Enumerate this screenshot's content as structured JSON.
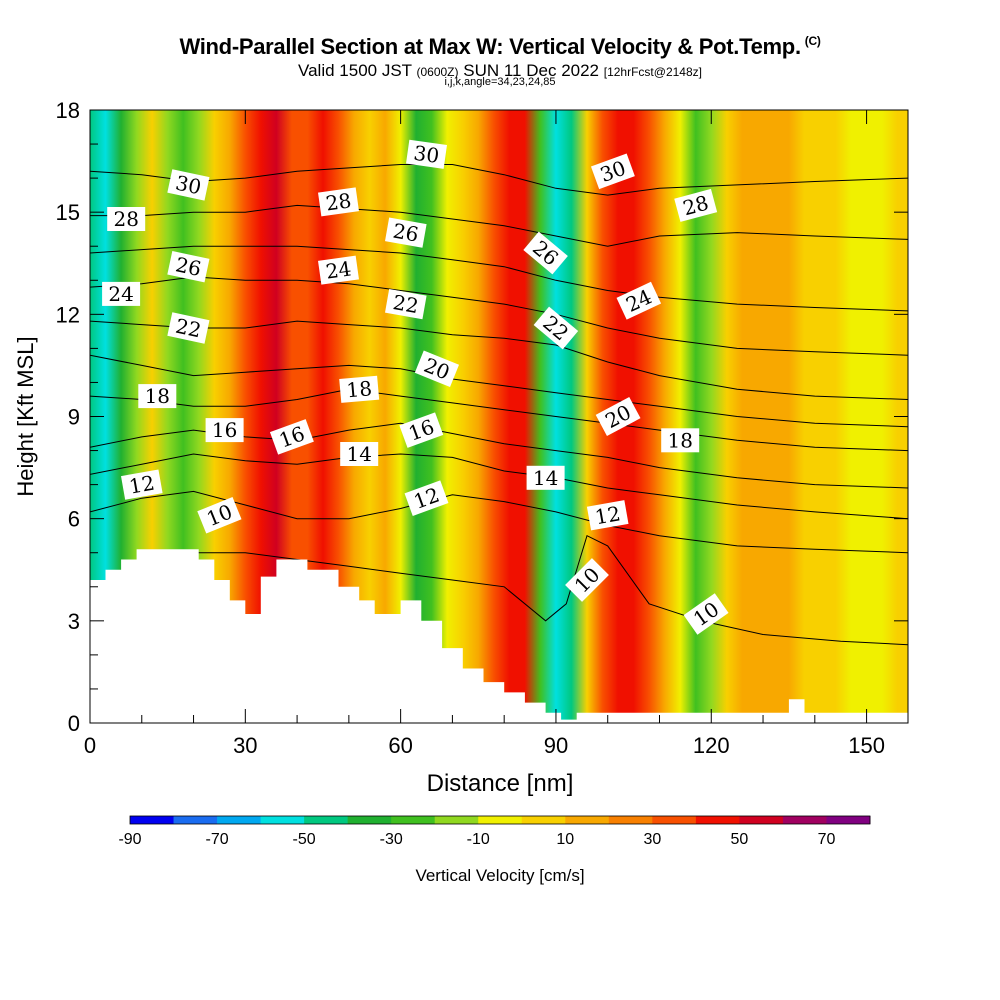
{
  "header": {
    "title": "Wind-Parallel Section at Max W: Vertical Velocity & Pot.Temp.",
    "copyright": "(C)",
    "valid_prefix": "Valid 1500 JST",
    "valid_zulu": "(0600Z)",
    "valid_date": "SUN 11 Dec 2022",
    "forecast": "[12hrFcst@2148z]",
    "indices": "i,j,k,angle=34,23,24,85"
  },
  "chart_data": {
    "type": "heatmap",
    "xlabel": "Distance [nm]",
    "ylabel": "Height [Kft MSL]",
    "xlim": [
      0,
      158
    ],
    "ylim": [
      0,
      18
    ],
    "x_ticks": [
      0,
      30,
      60,
      90,
      120,
      150
    ],
    "y_ticks": [
      0,
      3,
      6,
      9,
      12,
      15,
      18
    ],
    "colorbar": {
      "label": "Vertical Velocity [cm/s]",
      "bounds": [
        -90,
        80
      ],
      "tick_labels": [
        -90,
        -70,
        -50,
        -30,
        -10,
        10,
        30,
        50,
        70
      ],
      "colors": [
        "#0000f0",
        "#1a6cf0",
        "#00a8f0",
        "#00e0e0",
        "#00c880",
        "#20b030",
        "#40c020",
        "#90d820",
        "#f0f000",
        "#f8d000",
        "#f8a800",
        "#f88000",
        "#f85000",
        "#f01000",
        "#d00020",
        "#a00060",
        "#800080"
      ]
    },
    "velocity_columns": [
      {
        "x": 0,
        "w": -45
      },
      {
        "x": 3,
        "w": -52
      },
      {
        "x": 6,
        "w": -35
      },
      {
        "x": 9,
        "w": -15
      },
      {
        "x": 12,
        "w": 0
      },
      {
        "x": 15,
        "w": -18
      },
      {
        "x": 18,
        "w": -30
      },
      {
        "x": 21,
        "w": -20
      },
      {
        "x": 24,
        "w": 2
      },
      {
        "x": 27,
        "w": 18
      },
      {
        "x": 30,
        "w": 38
      },
      {
        "x": 33,
        "w": 48
      },
      {
        "x": 36,
        "w": 52
      },
      {
        "x": 39,
        "w": 38
      },
      {
        "x": 42,
        "w": 30
      },
      {
        "x": 45,
        "w": 40
      },
      {
        "x": 48,
        "w": 32
      },
      {
        "x": 51,
        "w": 18
      },
      {
        "x": 54,
        "w": 8
      },
      {
        "x": 57,
        "w": 14
      },
      {
        "x": 60,
        "w": -8
      },
      {
        "x": 63,
        "w": -32
      },
      {
        "x": 66,
        "w": -28
      },
      {
        "x": 69,
        "w": -5
      },
      {
        "x": 72,
        "w": 8
      },
      {
        "x": 75,
        "w": 18
      },
      {
        "x": 78,
        "w": 32
      },
      {
        "x": 81,
        "w": 48
      },
      {
        "x": 84,
        "w": 40
      },
      {
        "x": 87,
        "w": -22
      },
      {
        "x": 90,
        "w": -55
      },
      {
        "x": 93,
        "w": -42
      },
      {
        "x": 96,
        "w": 2
      },
      {
        "x": 99,
        "w": 30
      },
      {
        "x": 102,
        "w": 48
      },
      {
        "x": 105,
        "w": 45
      },
      {
        "x": 108,
        "w": 30
      },
      {
        "x": 111,
        "w": 10
      },
      {
        "x": 114,
        "w": -8
      },
      {
        "x": 117,
        "w": -22
      },
      {
        "x": 120,
        "w": -18
      },
      {
        "x": 123,
        "w": 2
      },
      {
        "x": 126,
        "w": 14
      },
      {
        "x": 129,
        "w": 16
      },
      {
        "x": 132,
        "w": 12
      },
      {
        "x": 135,
        "w": 10
      },
      {
        "x": 138,
        "w": 8
      },
      {
        "x": 141,
        "w": 4
      },
      {
        "x": 144,
        "w": 2
      },
      {
        "x": 147,
        "w": -2
      },
      {
        "x": 150,
        "w": -10
      },
      {
        "x": 153,
        "w": -4
      },
      {
        "x": 156,
        "w": 4
      },
      {
        "x": 158,
        "w": 6
      }
    ],
    "terrain_kft": [
      {
        "x": 0,
        "h": 4.2
      },
      {
        "x": 3,
        "h": 4.5
      },
      {
        "x": 6,
        "h": 4.8
      },
      {
        "x": 9,
        "h": 5.1
      },
      {
        "x": 18,
        "h": 5.1
      },
      {
        "x": 21,
        "h": 4.8
      },
      {
        "x": 24,
        "h": 4.2
      },
      {
        "x": 27,
        "h": 3.6
      },
      {
        "x": 30,
        "h": 3.2
      },
      {
        "x": 33,
        "h": 4.3
      },
      {
        "x": 36,
        "h": 4.8
      },
      {
        "x": 42,
        "h": 4.5
      },
      {
        "x": 48,
        "h": 4.0
      },
      {
        "x": 52,
        "h": 3.6
      },
      {
        "x": 55,
        "h": 3.2
      },
      {
        "x": 60,
        "h": 3.6
      },
      {
        "x": 64,
        "h": 3.0
      },
      {
        "x": 68,
        "h": 2.2
      },
      {
        "x": 72,
        "h": 1.6
      },
      {
        "x": 76,
        "h": 1.2
      },
      {
        "x": 80,
        "h": 0.9
      },
      {
        "x": 84,
        "h": 0.6
      },
      {
        "x": 88,
        "h": 0.3
      },
      {
        "x": 91,
        "h": 0.1
      },
      {
        "x": 94,
        "h": 0.3
      },
      {
        "x": 135,
        "h": 0.7
      },
      {
        "x": 138,
        "h": 0.3
      },
      {
        "x": 158,
        "h": 0.3
      }
    ],
    "isentropes": [
      {
        "label": "10",
        "pts": [
          [
            0,
            4.0
          ],
          [
            10,
            4.5
          ],
          [
            20,
            5.0
          ],
          [
            30,
            5.0
          ],
          [
            40,
            4.8
          ],
          [
            50,
            4.6
          ],
          [
            60,
            4.4
          ],
          [
            70,
            4.2
          ],
          [
            80,
            4.0
          ],
          [
            88,
            3.0
          ],
          [
            92,
            3.5
          ],
          [
            96,
            5.5
          ],
          [
            100,
            5.2
          ],
          [
            108,
            3.5
          ],
          [
            118,
            3.0
          ],
          [
            130,
            2.6
          ],
          [
            145,
            2.4
          ],
          [
            158,
            2.3
          ]
        ]
      },
      {
        "label": "12",
        "pts": [
          [
            0,
            6.2
          ],
          [
            10,
            6.6
          ],
          [
            20,
            6.8
          ],
          [
            30,
            6.4
          ],
          [
            40,
            6.0
          ],
          [
            50,
            6.0
          ],
          [
            60,
            6.3
          ],
          [
            70,
            6.7
          ],
          [
            80,
            6.5
          ],
          [
            90,
            6.2
          ],
          [
            100,
            5.8
          ],
          [
            110,
            5.5
          ],
          [
            125,
            5.2
          ],
          [
            140,
            5.1
          ],
          [
            158,
            5.0
          ]
        ]
      },
      {
        "label": "14",
        "pts": [
          [
            0,
            7.3
          ],
          [
            10,
            7.6
          ],
          [
            20,
            7.9
          ],
          [
            30,
            7.7
          ],
          [
            40,
            7.6
          ],
          [
            50,
            7.8
          ],
          [
            60,
            7.9
          ],
          [
            70,
            7.8
          ],
          [
            80,
            7.4
          ],
          [
            90,
            7.2
          ],
          [
            100,
            6.9
          ],
          [
            110,
            6.7
          ],
          [
            125,
            6.4
          ],
          [
            140,
            6.2
          ],
          [
            158,
            6.0
          ]
        ]
      },
      {
        "label": "16",
        "pts": [
          [
            0,
            8.1
          ],
          [
            10,
            8.4
          ],
          [
            20,
            8.6
          ],
          [
            30,
            8.4
          ],
          [
            40,
            8.3
          ],
          [
            50,
            8.6
          ],
          [
            60,
            8.8
          ],
          [
            70,
            8.5
          ],
          [
            80,
            8.2
          ],
          [
            90,
            8.0
          ],
          [
            100,
            7.8
          ],
          [
            110,
            7.5
          ],
          [
            125,
            7.2
          ],
          [
            140,
            7.0
          ],
          [
            158,
            6.9
          ]
        ]
      },
      {
        "label": "18",
        "pts": [
          [
            0,
            9.6
          ],
          [
            10,
            9.5
          ],
          [
            20,
            9.3
          ],
          [
            30,
            9.3
          ],
          [
            40,
            9.5
          ],
          [
            50,
            9.8
          ],
          [
            60,
            9.6
          ],
          [
            70,
            9.4
          ],
          [
            80,
            9.2
          ],
          [
            90,
            9.0
          ],
          [
            100,
            8.8
          ],
          [
            110,
            8.6
          ],
          [
            125,
            8.3
          ],
          [
            140,
            8.1
          ],
          [
            158,
            8.0
          ]
        ]
      },
      {
        "label": "20",
        "pts": [
          [
            0,
            10.8
          ],
          [
            10,
            10.5
          ],
          [
            20,
            10.2
          ],
          [
            30,
            10.3
          ],
          [
            40,
            10.4
          ],
          [
            50,
            10.5
          ],
          [
            60,
            10.4
          ],
          [
            70,
            10.1
          ],
          [
            80,
            9.9
          ],
          [
            90,
            9.7
          ],
          [
            100,
            9.5
          ],
          [
            110,
            9.3
          ],
          [
            125,
            9.0
          ],
          [
            140,
            8.8
          ],
          [
            158,
            8.7
          ]
        ]
      },
      {
        "label": "22",
        "pts": [
          [
            0,
            11.8
          ],
          [
            10,
            11.7
          ],
          [
            20,
            11.6
          ],
          [
            30,
            11.6
          ],
          [
            40,
            11.8
          ],
          [
            50,
            11.7
          ],
          [
            60,
            11.6
          ],
          [
            70,
            11.4
          ],
          [
            80,
            11.3
          ],
          [
            90,
            11.1
          ],
          [
            100,
            10.6
          ],
          [
            110,
            10.2
          ],
          [
            125,
            9.8
          ],
          [
            140,
            9.6
          ],
          [
            158,
            9.5
          ]
        ]
      },
      {
        "label": "24",
        "pts": [
          [
            0,
            12.8
          ],
          [
            10,
            12.9
          ],
          [
            20,
            13.1
          ],
          [
            30,
            13.0
          ],
          [
            40,
            13.0
          ],
          [
            50,
            12.9
          ],
          [
            60,
            12.7
          ],
          [
            70,
            12.5
          ],
          [
            80,
            12.3
          ],
          [
            90,
            12.0
          ],
          [
            100,
            11.6
          ],
          [
            110,
            11.3
          ],
          [
            125,
            11.0
          ],
          [
            140,
            10.9
          ],
          [
            158,
            10.8
          ]
        ]
      },
      {
        "label": "26",
        "pts": [
          [
            0,
            13.8
          ],
          [
            10,
            13.9
          ],
          [
            20,
            14.0
          ],
          [
            30,
            14.0
          ],
          [
            40,
            14.0
          ],
          [
            50,
            13.9
          ],
          [
            60,
            13.8
          ],
          [
            70,
            13.6
          ],
          [
            80,
            13.4
          ],
          [
            90,
            13.0
          ],
          [
            100,
            12.7
          ],
          [
            110,
            12.5
          ],
          [
            125,
            12.3
          ],
          [
            140,
            12.2
          ],
          [
            158,
            12.1
          ]
        ]
      },
      {
        "label": "28",
        "pts": [
          [
            0,
            14.9
          ],
          [
            10,
            14.9
          ],
          [
            20,
            15.0
          ],
          [
            30,
            15.0
          ],
          [
            40,
            15.2
          ],
          [
            50,
            15.1
          ],
          [
            60,
            15.0
          ],
          [
            70,
            14.8
          ],
          [
            80,
            14.6
          ],
          [
            90,
            14.3
          ],
          [
            100,
            14.0
          ],
          [
            110,
            14.3
          ],
          [
            125,
            14.4
          ],
          [
            140,
            14.3
          ],
          [
            158,
            14.2
          ]
        ]
      },
      {
        "label": "30",
        "pts": [
          [
            0,
            16.2
          ],
          [
            10,
            16.1
          ],
          [
            20,
            15.9
          ],
          [
            30,
            16.0
          ],
          [
            40,
            16.2
          ],
          [
            50,
            16.3
          ],
          [
            60,
            16.4
          ],
          [
            70,
            16.4
          ],
          [
            80,
            16.1
          ],
          [
            90,
            15.7
          ],
          [
            100,
            15.5
          ],
          [
            110,
            15.7
          ],
          [
            125,
            15.8
          ],
          [
            140,
            15.9
          ],
          [
            158,
            16.0
          ]
        ]
      }
    ],
    "contour_labels": [
      {
        "text": "30",
        "x": 19,
        "y": 15.8,
        "angle": 12
      },
      {
        "text": "28",
        "x": 7,
        "y": 14.8,
        "angle": 0
      },
      {
        "text": "26",
        "x": 19,
        "y": 13.4,
        "angle": 12
      },
      {
        "text": "24",
        "x": 6,
        "y": 12.6,
        "angle": 0
      },
      {
        "text": "22",
        "x": 19,
        "y": 11.6,
        "angle": 12
      },
      {
        "text": "18",
        "x": 13,
        "y": 9.6,
        "angle": 0
      },
      {
        "text": "16",
        "x": 26,
        "y": 8.6,
        "angle": 0
      },
      {
        "text": "12",
        "x": 10,
        "y": 7.0,
        "angle": -10
      },
      {
        "text": "10",
        "x": 25,
        "y": 6.1,
        "angle": -22
      },
      {
        "text": "30",
        "x": 65,
        "y": 16.7,
        "angle": 8
      },
      {
        "text": "28",
        "x": 48,
        "y": 15.3,
        "angle": -8
      },
      {
        "text": "26",
        "x": 61,
        "y": 14.4,
        "angle": 10
      },
      {
        "text": "24",
        "x": 48,
        "y": 13.3,
        "angle": -8
      },
      {
        "text": "22",
        "x": 61,
        "y": 12.3,
        "angle": 10
      },
      {
        "text": "18",
        "x": 52,
        "y": 9.8,
        "angle": -5
      },
      {
        "text": "16",
        "x": 39,
        "y": 8.4,
        "angle": -20
      },
      {
        "text": "14",
        "x": 52,
        "y": 7.9,
        "angle": 0
      },
      {
        "text": "20",
        "x": 67,
        "y": 10.4,
        "angle": 22
      },
      {
        "text": "16",
        "x": 64,
        "y": 8.6,
        "angle": -20
      },
      {
        "text": "12",
        "x": 65,
        "y": 6.6,
        "angle": -20
      },
      {
        "text": "26",
        "x": 88,
        "y": 13.8,
        "angle": 40
      },
      {
        "text": "22",
        "x": 90,
        "y": 11.6,
        "angle": 40
      },
      {
        "text": "14",
        "x": 88,
        "y": 7.2,
        "angle": 0
      },
      {
        "text": "30",
        "x": 101,
        "y": 16.2,
        "angle": -20
      },
      {
        "text": "24",
        "x": 106,
        "y": 12.4,
        "angle": -25
      },
      {
        "text": "20",
        "x": 102,
        "y": 9.0,
        "angle": -28
      },
      {
        "text": "12",
        "x": 100,
        "y": 6.1,
        "angle": -10
      },
      {
        "text": "10",
        "x": 96,
        "y": 4.2,
        "angle": -45
      },
      {
        "text": "28",
        "x": 117,
        "y": 15.2,
        "angle": -15
      },
      {
        "text": "18",
        "x": 114,
        "y": 8.3,
        "angle": 0
      },
      {
        "text": "10",
        "x": 119,
        "y": 3.2,
        "angle": -35
      }
    ]
  }
}
